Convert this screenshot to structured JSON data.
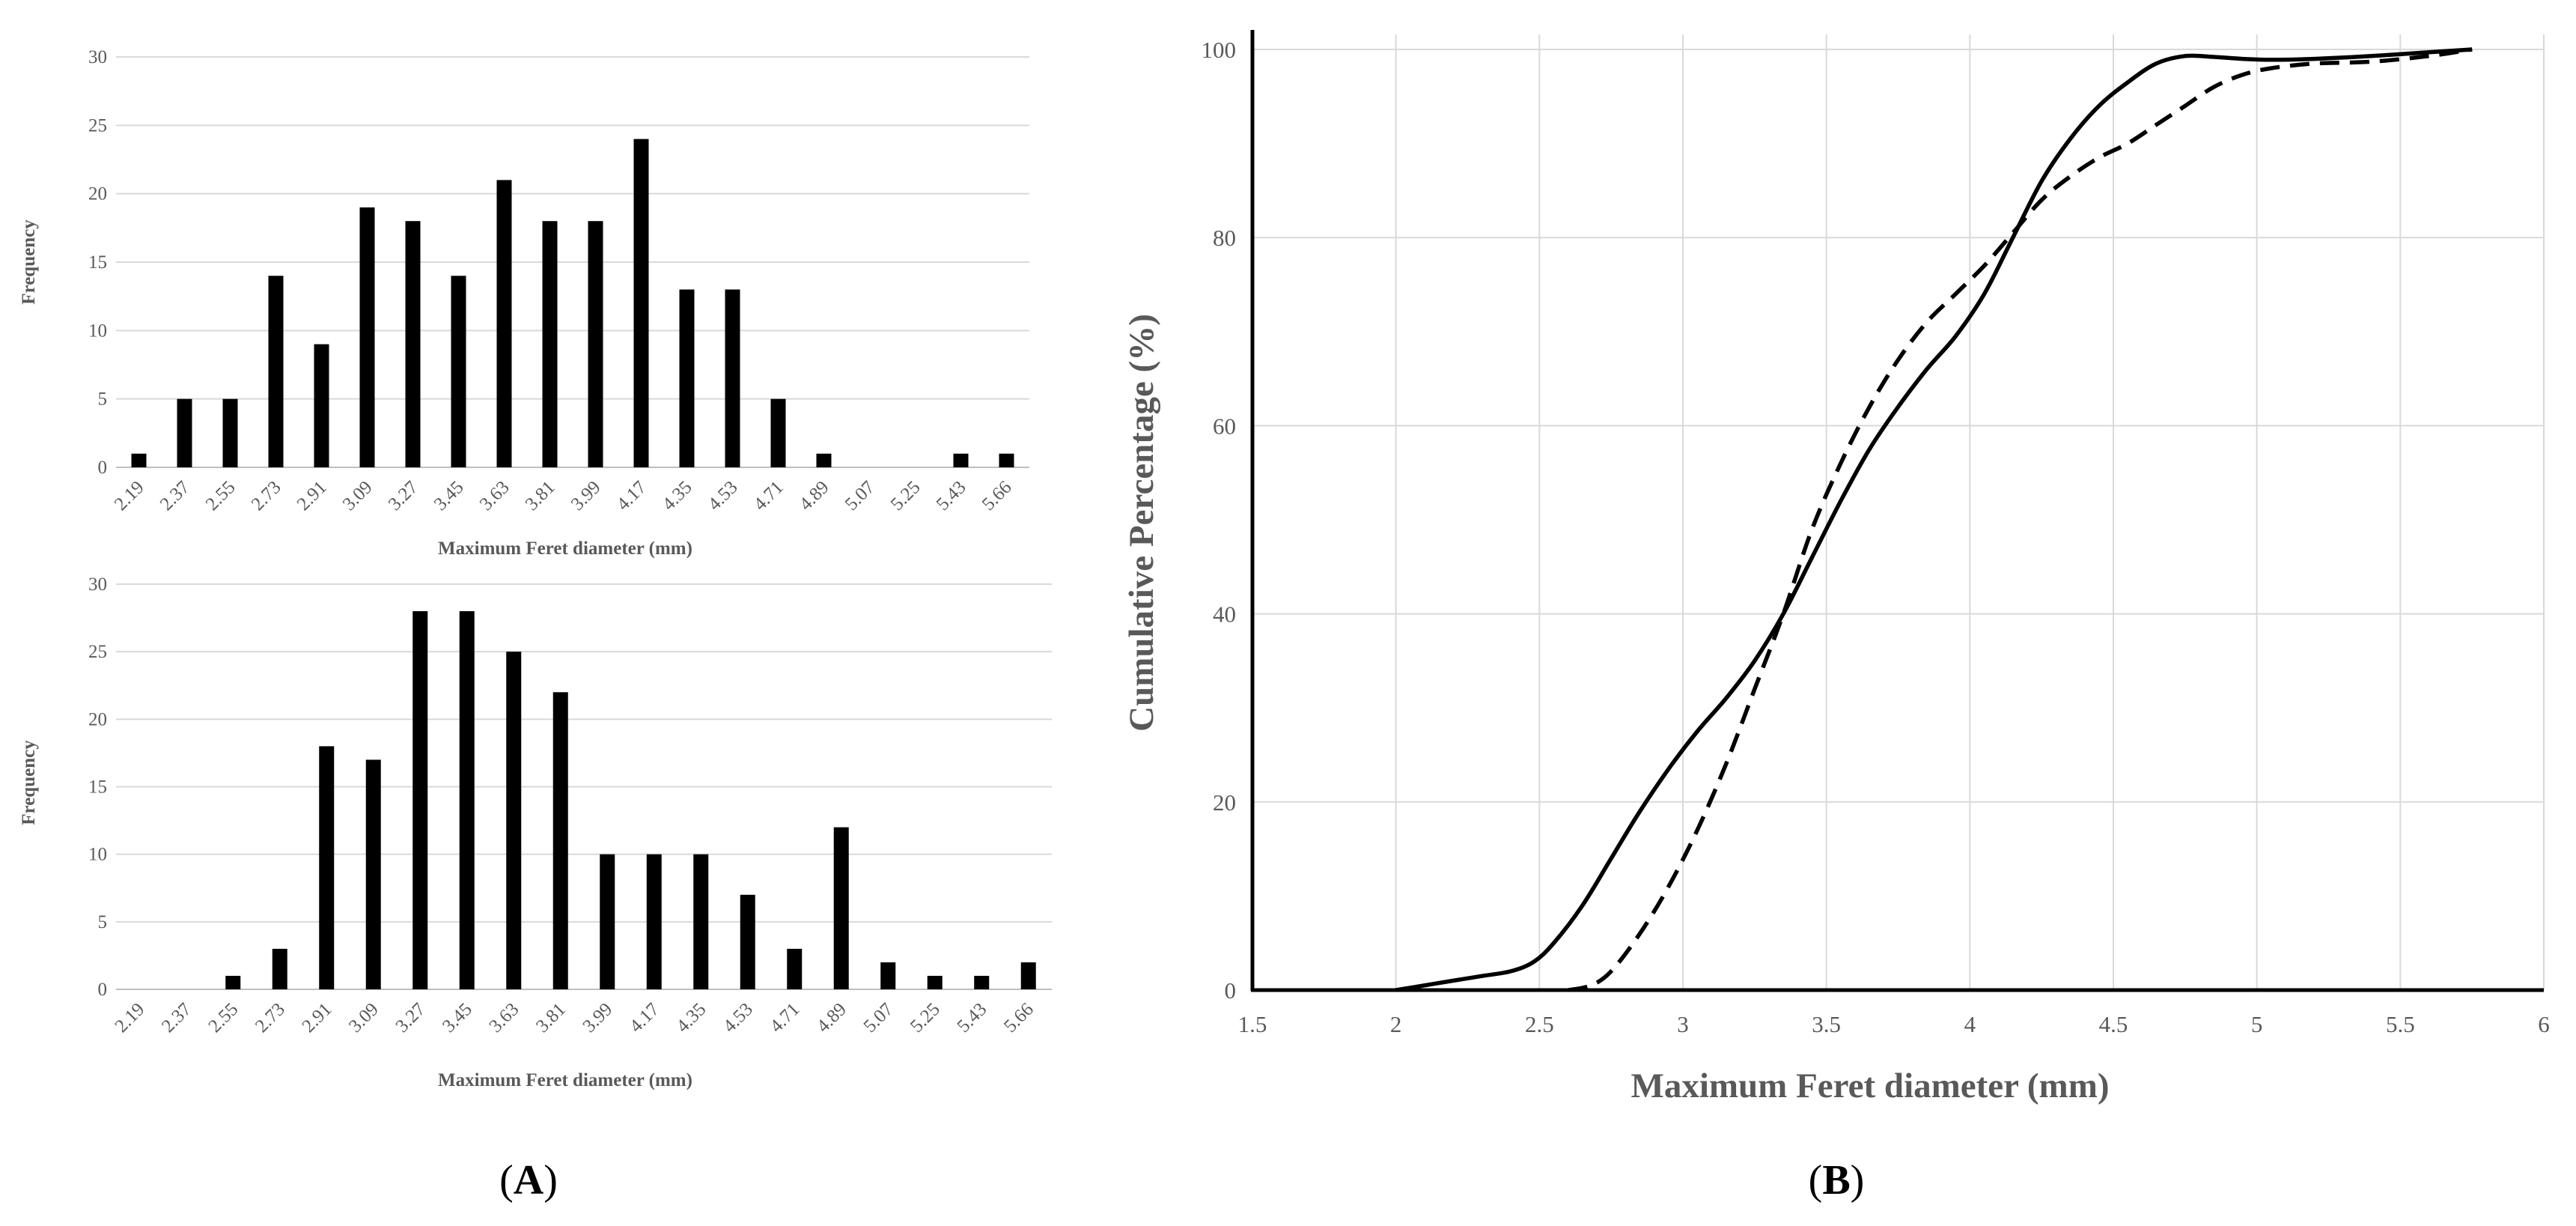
{
  "chart_data": [
    {
      "type": "bar",
      "panel": "A-top",
      "categories": [
        "2.19",
        "2.37",
        "2.55",
        "2.73",
        "2.91",
        "3.09",
        "3.27",
        "3.45",
        "3.63",
        "3.81",
        "3.99",
        "4.17",
        "4.35",
        "4.53",
        "4.71",
        "4.89",
        "5.07",
        "5.25",
        "5.43",
        "5.66"
      ],
      "values": [
        1,
        5,
        5,
        14,
        9,
        19,
        18,
        14,
        21,
        18,
        18,
        24,
        13,
        13,
        5,
        1,
        0,
        0,
        1,
        1
      ],
      "xlabel": "Maximum  Feret diameter  (mm)",
      "ylabel": "Frequency",
      "ylim": [
        0,
        30
      ],
      "yticks": [
        0,
        5,
        10,
        15,
        20,
        25,
        30
      ],
      "grid": true
    },
    {
      "type": "bar",
      "panel": "A-bottom",
      "categories": [
        "2.19",
        "2.37",
        "2.55",
        "2.73",
        "2.91",
        "3.09",
        "3.27",
        "3.45",
        "3.63",
        "3.81",
        "3.99",
        "4.17",
        "4.35",
        "4.53",
        "4.71",
        "4.89",
        "5.07",
        "5.25",
        "5.43",
        "5.66"
      ],
      "values": [
        0,
        0,
        1,
        3,
        18,
        17,
        28,
        28,
        25,
        22,
        10,
        10,
        10,
        7,
        3,
        12,
        2,
        1,
        1,
        2
      ],
      "xlabel": "Maximum  Feret diameter  (mm)",
      "ylabel": "Frequency",
      "ylim": [
        0,
        30
      ],
      "yticks": [
        0,
        5,
        10,
        15,
        20,
        25,
        30
      ],
      "grid": true
    },
    {
      "type": "line",
      "panel": "B",
      "xlabel": "Maximum  Feret diameter (mm)",
      "ylabel": "Cumulative  Percentage (%)",
      "xlim": [
        1.5,
        6
      ],
      "ylim": [
        0,
        100
      ],
      "xticks": [
        "1.5",
        "2",
        "2.5",
        "3",
        "3.5",
        "4",
        "4.5",
        "5",
        "5.5",
        "6"
      ],
      "yticks": [
        "0",
        "20",
        "40",
        "60",
        "80",
        "100"
      ],
      "grid": true,
      "series": [
        {
          "name": "solid",
          "style": "solid",
          "x": [
            2.0,
            2.1,
            2.2,
            2.3,
            2.4,
            2.48,
            2.55,
            2.65,
            2.75,
            2.85,
            2.95,
            3.05,
            3.15,
            3.25,
            3.35,
            3.45,
            3.55,
            3.65,
            3.75,
            3.85,
            3.95,
            4.05,
            4.15,
            4.25,
            4.35,
            4.45,
            4.55,
            4.65,
            4.75,
            4.85,
            4.95,
            5.05,
            5.2,
            5.4,
            5.6,
            5.75
          ],
          "y": [
            0,
            0.5,
            1,
            1.5,
            2,
            3,
            5,
            9,
            14,
            19,
            23.5,
            27.5,
            31,
            35,
            40,
            46,
            52,
            57.5,
            62,
            66,
            69.5,
            74,
            80,
            86,
            90.5,
            94,
            96.5,
            98.5,
            99.3,
            99.2,
            99,
            98.9,
            99,
            99.3,
            99.7,
            100
          ]
        },
        {
          "name": "dashed",
          "style": "dashed",
          "x": [
            2.6,
            2.68,
            2.75,
            2.85,
            2.95,
            3.05,
            3.15,
            3.25,
            3.35,
            3.45,
            3.55,
            3.65,
            3.75,
            3.85,
            3.95,
            4.05,
            4.15,
            4.25,
            4.35,
            4.45,
            4.55,
            4.65,
            4.75,
            4.85,
            4.95,
            5.05,
            5.2,
            5.4,
            5.6,
            5.75
          ],
          "y": [
            0,
            0.5,
            2,
            6,
            11,
            17,
            24,
            32,
            40,
            49,
            56,
            62,
            67,
            71,
            74,
            77,
            80.5,
            84,
            86.5,
            88.5,
            90,
            92,
            94,
            96,
            97.3,
            98,
            98.5,
            98.7,
            99.3,
            100
          ]
        }
      ]
    }
  ],
  "panel_labels": {
    "a": {
      "open": "(",
      "letter": "A",
      "close": ")"
    },
    "b": {
      "open": "(",
      "letter": "B",
      "close": ")"
    }
  }
}
